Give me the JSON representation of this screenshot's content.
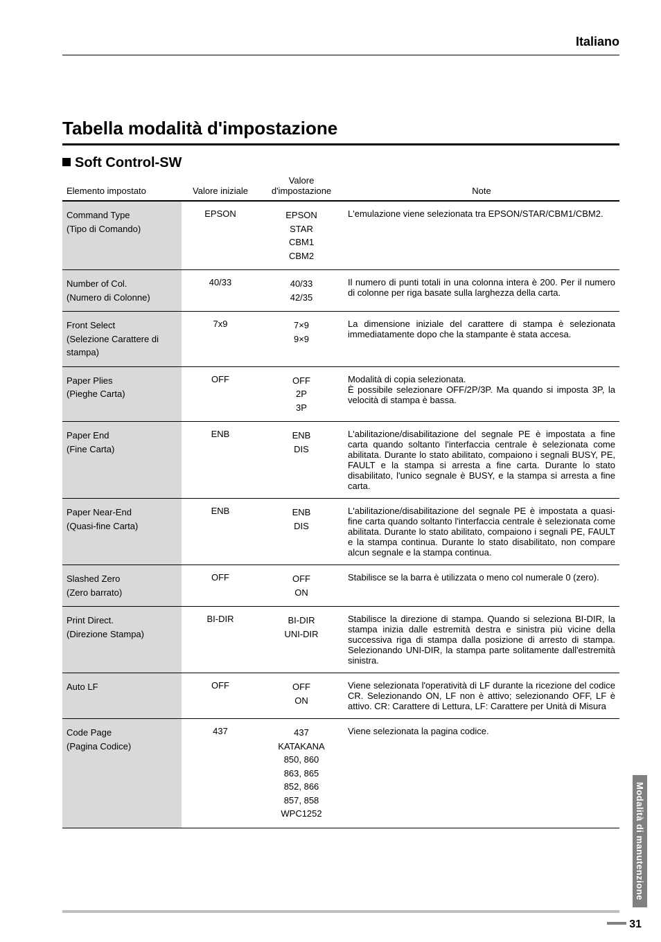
{
  "header": {
    "language": "Italiano"
  },
  "title": "Tabella modalità d'impostazione",
  "section": "Soft Control-SW",
  "columns": {
    "c1": "Elemento impostato",
    "c2": "Valore iniziale",
    "c3a": "Valore",
    "c3b": "d'impostazione",
    "c4": "Note"
  },
  "rows": [
    {
      "item1": "Command Type",
      "item2": "(Tipo di Comando)",
      "init": "EPSON",
      "vals": "EPSON\nSTAR\nCBM1\nCBM2",
      "note": "L'emulazione viene selezionata tra EPSON/STAR/CBM1/CBM2."
    },
    {
      "item1": "Number of Col.",
      "item2": "(Numero di Colonne)",
      "init": "40/33",
      "vals": "40/33\n42/35",
      "note": "Il numero di punti totali in una colonna intera è 200. Per il numero di colonne per riga basate sulla larghezza della carta."
    },
    {
      "item1": "Front Select",
      "item2": "(Selezione Carattere di stampa)",
      "init": "7x9",
      "vals": "7×9\n9×9",
      "note": "La dimensione iniziale del carattere di stampa è selezionata immediatamente dopo che la stampante è stata accesa."
    },
    {
      "item1": "Paper Plies",
      "item2": "(Pieghe Carta)",
      "init": "OFF",
      "vals": "OFF\n2P\n3P",
      "note": "Modalità di copia selezionata.\nÈ possibile selezionare OFF/2P/3P. Ma quando si imposta 3P, la velocità di stampa è bassa."
    },
    {
      "item1": "Paper End",
      "item2": "(Fine Carta)",
      "init": "ENB",
      "vals": "ENB\nDIS",
      "note": "L'abilitazione/disabilitazione del segnale PE è impostata a fine carta quando soltanto l'interfaccia centrale è selezionata come abilitata. Durante lo stato abilitato, compaiono i segnali BUSY, PE, FAULT e la stampa si arresta a fine carta. Durante lo stato disabilitato, l'unico segnale è BUSY, e la stampa si arresta a fine carta."
    },
    {
      "item1": "Paper Near-End",
      "item2": "(Quasi-fine Carta)",
      "init": "ENB",
      "vals": "ENB\nDIS",
      "note": "L'abilitazione/disabilitazione del segnale PE è impostata a quasi-fine carta quando soltanto l'interfaccia centrale è selezionata come abilitata. Durante lo stato abilitato, compaiono i segnali PE, FAULT e la stampa continua. Durante lo stato disabilitato, non compare alcun segnale e la stampa continua."
    },
    {
      "item1": "Slashed Zero",
      "item2": "(Zero barrato)",
      "init": "OFF",
      "vals": "OFF\nON",
      "note": "Stabilisce se la barra è utilizzata o meno col numerale 0 (zero)."
    },
    {
      "item1": "Print Direct.",
      "item2": "(Direzione Stampa)",
      "init": "BI-DIR",
      "vals": "BI-DIR\nUNI-DIR",
      "note": "Stabilisce la direzione di stampa. Quando si seleziona BI-DIR, la stampa inizia dalle estremità destra e sinistra più vicine della successiva riga di stampa dalla posizione di arresto di stampa. Selezionando UNI-DIR, la stampa parte solitamente dall'estremità sinistra."
    },
    {
      "item1": "Auto LF",
      "item2": "",
      "init": "OFF",
      "vals": "OFF\nON",
      "note": "Viene selezionata l'operatività di LF durante la ricezione del codice CR. Selezionando ON, LF non è attivo; selezionando OFF, LF è attivo. CR: Carattere di Lettura, LF: Carattere per Unità di Misura"
    },
    {
      "item1": "Code Page",
      "item2": "(Pagina Codice)",
      "init": "437",
      "vals": "437\nKATAKANA\n850, 860\n863, 865\n852, 866\n857, 858\nWPC1252",
      "note": "Viene selezionata la pagina codice."
    }
  ],
  "sidetab": "Modalità di manutenzione",
  "pagenum": "31"
}
